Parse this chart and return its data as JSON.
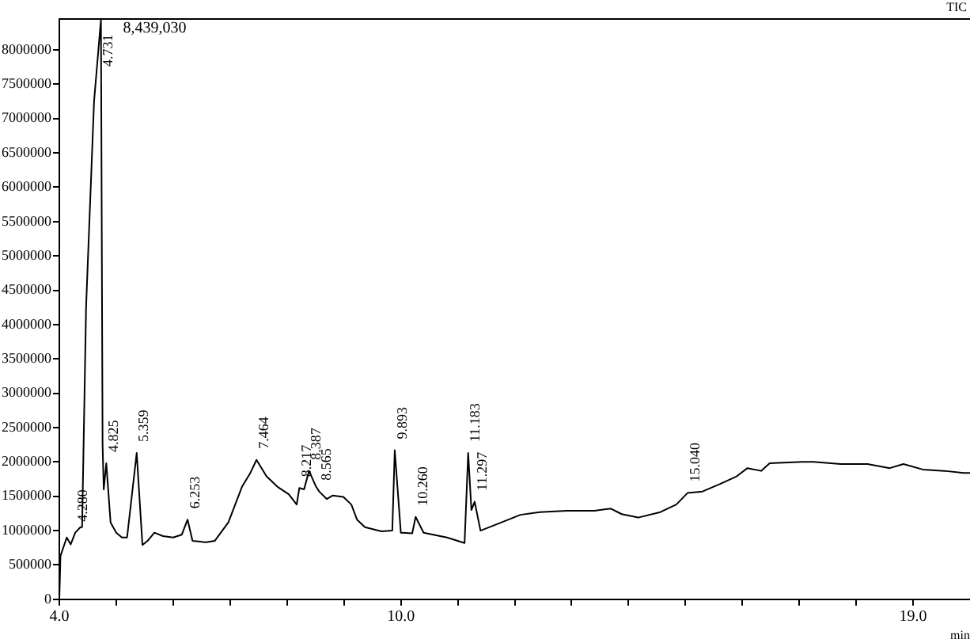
{
  "chart_data": {
    "type": "line",
    "xlabel": "min",
    "x": [
      4.0,
      4.02,
      4.13,
      4.2,
      4.28,
      4.37,
      4.4,
      4.47,
      4.61,
      4.731,
      4.76,
      4.78,
      4.825,
      4.9,
      5.0,
      5.1,
      5.19,
      5.359,
      5.46,
      5.55,
      5.67,
      5.82,
      6.0,
      6.15,
      6.253,
      6.34,
      6.58,
      6.73,
      6.97,
      7.21,
      7.35,
      7.464,
      7.64,
      7.83,
      8.03,
      8.17,
      8.217,
      8.3,
      8.387,
      8.51,
      8.565,
      8.7,
      8.8,
      8.99,
      9.13,
      9.23,
      9.37,
      9.66,
      9.85,
      9.893,
      10.0,
      10.2,
      10.26,
      10.4,
      10.81,
      11.12,
      11.183,
      11.24,
      11.297,
      11.4,
      11.77,
      12.1,
      12.44,
      12.92,
      13.4,
      13.69,
      13.88,
      14.17,
      14.56,
      14.84,
      15.04,
      15.3,
      15.61,
      15.9,
      16.09,
      16.33,
      16.48,
      17.05,
      17.25,
      17.73,
      18.2,
      18.59,
      18.83,
      19.17,
      19.55,
      19.89,
      20.0
    ],
    "values": [
      0,
      630000,
      900000,
      800000,
      970000,
      1050000,
      1050000,
      4260000,
      7250000,
      8439030,
      2240000,
      1600000,
      1980000,
      1120000,
      970000,
      900000,
      900000,
      2130000,
      790000,
      850000,
      970000,
      920000,
      900000,
      940000,
      1160000,
      850000,
      830000,
      850000,
      1120000,
      1640000,
      1830000,
      2030000,
      1790000,
      1640000,
      1530000,
      1380000,
      1620000,
      1600000,
      1870000,
      1640000,
      1570000,
      1460000,
      1510000,
      1490000,
      1380000,
      1160000,
      1050000,
      990000,
      1000000,
      2170000,
      970000,
      960000,
      1200000,
      970000,
      900000,
      820000,
      2130000,
      1300000,
      1420000,
      1000000,
      1120000,
      1230000,
      1270000,
      1290000,
      1290000,
      1320000,
      1240000,
      1190000,
      1270000,
      1380000,
      1550000,
      1570000,
      1680000,
      1790000,
      1910000,
      1870000,
      1980000,
      2000000,
      2000000,
      1970000,
      1970000,
      1910000,
      1970000,
      1890000,
      1870000,
      1840000,
      1840000
    ],
    "color": "#000000",
    "marker": "none",
    "line_style": "solid",
    "grid": false,
    "legend": false,
    "xlim": [
      4,
      20
    ],
    "xticks": [
      {
        "value": 4,
        "label": "4.0"
      },
      {
        "value": 5,
        "label": null
      },
      {
        "value": 6,
        "label": null
      },
      {
        "value": 7,
        "label": null
      },
      {
        "value": 8,
        "label": null
      },
      {
        "value": 9,
        "label": null
      },
      {
        "value": 10,
        "label": "10.0"
      },
      {
        "value": 11,
        "label": null
      },
      {
        "value": 12,
        "label": null
      },
      {
        "value": 13,
        "label": null
      },
      {
        "value": 14,
        "label": null
      },
      {
        "value": 15,
        "label": null
      },
      {
        "value": 16,
        "label": null
      },
      {
        "value": 17,
        "label": null
      },
      {
        "value": 18,
        "label": null
      },
      {
        "value": 19,
        "label": "19.0"
      }
    ],
    "ylim": [
      0,
      8450000
    ],
    "yticks": [
      0,
      500000,
      1000000,
      1500000,
      2000000,
      2500000,
      3000000,
      3500000,
      4000000,
      4500000,
      5000000,
      5500000,
      6000000,
      6500000,
      7000000,
      7500000,
      8000000
    ],
    "annotations": [
      "8,439,030",
      "TIC",
      {
        "text": "4.280",
        "x": 4.28,
        "y": 970000
      },
      {
        "text": "4.731",
        "x": 4.731,
        "y": 8439030
      },
      {
        "text": "4.825",
        "x": 4.825,
        "y": 1980000
      },
      {
        "text": "5.359",
        "x": 5.359,
        "y": 2130000
      },
      {
        "text": "6.253",
        "x": 6.253,
        "y": 1160000
      },
      {
        "text": "7.464",
        "x": 7.464,
        "y": 2030000
      },
      {
        "text": "8.217",
        "x": 8.217,
        "y": 1620000
      },
      {
        "text": "8.387",
        "x": 8.387,
        "y": 1870000
      },
      {
        "text": "8.565",
        "x": 8.565,
        "y": 1570000
      },
      {
        "text": "9.893",
        "x": 9.893,
        "y": 2170000
      },
      {
        "text": "10.260",
        "x": 10.26,
        "y": 1200000
      },
      {
        "text": "11.183",
        "x": 11.183,
        "y": 2130000
      },
      {
        "text": "11.297",
        "x": 11.297,
        "y": 1420000
      },
      {
        "text": "15.040",
        "x": 15.04,
        "y": 1550000
      }
    ]
  }
}
